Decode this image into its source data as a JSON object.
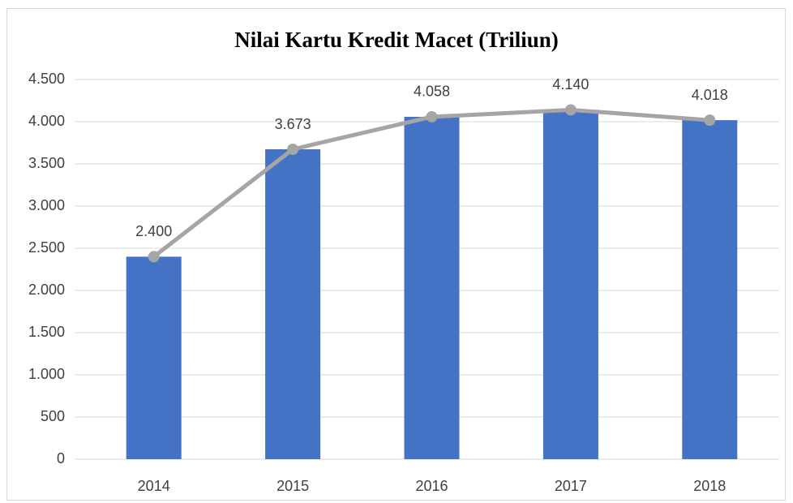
{
  "chart_data": {
    "type": "combo",
    "title": "Nilai Kartu Kredit Macet (Triliun)",
    "categories": [
      "2014",
      "2015",
      "2016",
      "2017",
      "2018"
    ],
    "series": [
      {
        "type": "bar",
        "color": "#4472c4",
        "values": [
          2400,
          3673,
          4058,
          4140,
          4018
        ]
      },
      {
        "type": "line",
        "color": "#a5a5a5",
        "values": [
          2400,
          3673,
          4058,
          4140,
          4018
        ],
        "value_labels": [
          "2.400",
          "3.673",
          "4.058",
          "4.140",
          "4.018"
        ]
      }
    ],
    "ylim": [
      0,
      4500
    ],
    "yticks": [
      0,
      500,
      {
        "value": 1000,
        "label": "1.000"
      },
      {
        "value": 1500,
        "label": "1.500"
      },
      {
        "value": 2000,
        "label": "2.000"
      },
      {
        "value": 2500,
        "label": "2.500"
      },
      {
        "value": 3000,
        "label": "3.000"
      },
      {
        "value": 3500,
        "label": "3.500"
      },
      {
        "value": 4000,
        "label": "4.000"
      },
      {
        "value": 4500,
        "label": "4.500"
      }
    ],
    "grid": true
  }
}
